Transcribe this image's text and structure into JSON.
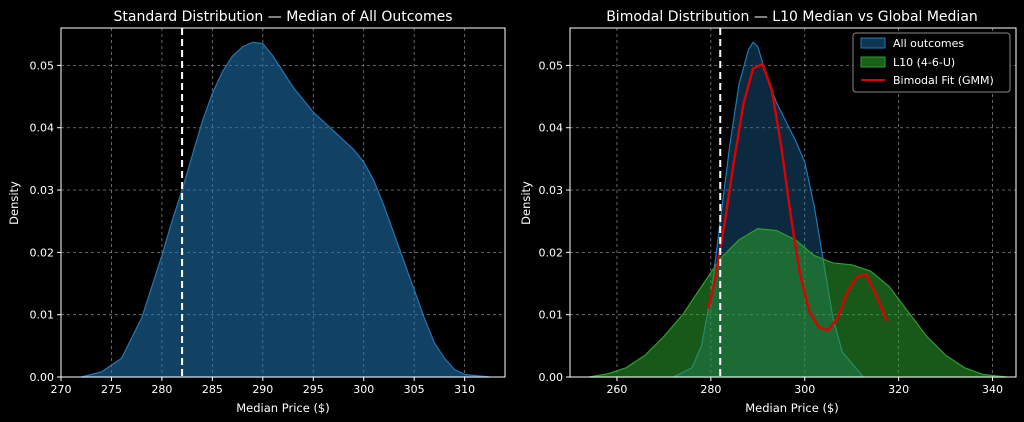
{
  "chart_data": [
    {
      "type": "area",
      "title": "Standard Distribution — Median of All Outcomes",
      "xlabel": "Median Price ($)",
      "ylabel": "Density",
      "xlim": [
        270,
        314
      ],
      "ylim": [
        0,
        0.056
      ],
      "xticks": [
        "270",
        "275",
        "280",
        "285",
        "290",
        "295",
        "300",
        "305",
        "310"
      ],
      "yticks": [
        "0.00",
        "0.01",
        "0.02",
        "0.03",
        "0.04",
        "0.05"
      ],
      "grid": true,
      "vline": 282,
      "series": [
        {
          "name": "All outcomes",
          "color": "#1f77b4",
          "x": [
            272,
            274,
            276,
            278,
            279,
            280,
            281,
            282,
            283,
            284,
            285,
            286,
            287,
            288,
            289,
            290,
            291,
            292,
            293,
            294,
            295,
            296,
            297,
            298,
            299,
            300,
            301,
            302,
            303,
            304,
            305,
            306,
            307,
            308,
            309,
            310,
            312.5
          ],
          "y": [
            0.0,
            0.0008,
            0.003,
            0.0095,
            0.0145,
            0.0195,
            0.025,
            0.03,
            0.0355,
            0.041,
            0.0455,
            0.049,
            0.0515,
            0.053,
            0.0537,
            0.0535,
            0.0515,
            0.049,
            0.0465,
            0.0445,
            0.0425,
            0.041,
            0.0395,
            0.038,
            0.0365,
            0.0345,
            0.0315,
            0.0275,
            0.023,
            0.0185,
            0.014,
            0.0095,
            0.0055,
            0.003,
            0.0012,
            0.0004,
            0.0
          ]
        }
      ]
    },
    {
      "type": "area",
      "title": "Bimodal Distribution — L10 Median vs Global Median",
      "xlabel": "Median Price ($)",
      "ylabel": "Density",
      "xlim": [
        250,
        345
      ],
      "ylim": [
        0,
        0.056
      ],
      "xticks": [
        "260",
        "280",
        "300",
        "320",
        "340"
      ],
      "yticks": [
        "0.00",
        "0.01",
        "0.02",
        "0.03",
        "0.04",
        "0.05"
      ],
      "grid": true,
      "vline": 282,
      "legend": [
        "All outcomes",
        "L10 (4-6-U)",
        "Bimodal Fit (GMM)"
      ],
      "legend_position": "top-right",
      "series": [
        {
          "name": "All outcomes",
          "color": "#1f77b4",
          "x": [
            272,
            276,
            278,
            280,
            282,
            284,
            286,
            288,
            289,
            290,
            292,
            294,
            296,
            298,
            300,
            302,
            304,
            306,
            308,
            312.5
          ],
          "y": [
            0.0,
            0.0015,
            0.005,
            0.013,
            0.025,
            0.037,
            0.047,
            0.0525,
            0.0537,
            0.053,
            0.048,
            0.044,
            0.041,
            0.038,
            0.0345,
            0.0275,
            0.0185,
            0.0095,
            0.004,
            0.0
          ]
        },
        {
          "name": "L10 (4-6-U)",
          "color": "#2ca02c",
          "x": [
            254,
            258,
            262,
            266,
            270,
            274,
            278,
            282,
            286,
            290,
            294,
            298,
            302,
            306,
            310,
            314,
            318,
            322,
            326,
            330,
            334,
            338,
            343
          ],
          "y": [
            0.0,
            0.0005,
            0.0015,
            0.0035,
            0.0065,
            0.01,
            0.0145,
            0.019,
            0.022,
            0.0238,
            0.0235,
            0.022,
            0.0195,
            0.0183,
            0.018,
            0.017,
            0.0145,
            0.0105,
            0.0065,
            0.0035,
            0.0015,
            0.0004,
            0.0
          ]
        },
        {
          "name": "Bimodal Fit (GMM)",
          "color": "#dd0000",
          "x": [
            279.5,
            281,
            283,
            285,
            287,
            289,
            291,
            293,
            295,
            297,
            299,
            301,
            303,
            305,
            307,
            309,
            311,
            313,
            315,
            317.5
          ],
          "y": [
            0.011,
            0.016,
            0.025,
            0.035,
            0.044,
            0.0495,
            0.0502,
            0.046,
            0.037,
            0.026,
            0.0165,
            0.0105,
            0.008,
            0.0075,
            0.0095,
            0.0135,
            0.016,
            0.0165,
            0.0135,
            0.009
          ]
        }
      ]
    }
  ],
  "colors": {
    "background": "#000000",
    "grid": "#808080",
    "axis": "#ffffff",
    "vline": "#ffffff"
  }
}
